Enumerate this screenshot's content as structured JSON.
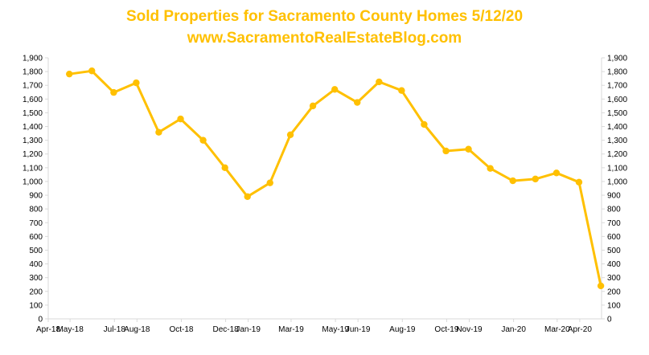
{
  "chart_data": {
    "type": "line",
    "title": "Sold Properties for Sacramento County Homes 5/12/20",
    "subtitle": "www.SacramentoRealEstateBlog.com",
    "xlabel": "",
    "ylabel": "",
    "x_ticks": [
      "Apr-18",
      "May-18",
      "Jul-18",
      "Aug-18",
      "Oct-18",
      "Dec-18",
      "Jan-19",
      "Mar-19",
      "May-19",
      "Jun-19",
      "Aug-19",
      "Oct-19",
      "Nov-19",
      "Jan-20",
      "Mar-20",
      "Apr-20"
    ],
    "y_ticks": [
      "0",
      "100",
      "200",
      "300",
      "400",
      "500",
      "600",
      "700",
      "800",
      "900",
      "1,000",
      "1,100",
      "1,200",
      "1,300",
      "1,400",
      "1,500",
      "1,600",
      "1,700",
      "1,800",
      "1,900"
    ],
    "ylim": [
      0,
      1900
    ],
    "xlim": [
      "2018-04-01",
      "2020-05-01"
    ],
    "grid": false,
    "legend": "none",
    "secondary_y_axis": true,
    "series": [
      {
        "color": "#FFC000",
        "x": [
          "2018-04-30",
          "2018-05-31",
          "2018-06-30",
          "2018-07-31",
          "2018-08-31",
          "2018-09-30",
          "2018-10-31",
          "2018-11-30",
          "2018-12-31",
          "2019-01-31",
          "2019-02-28",
          "2019-03-31",
          "2019-04-30",
          "2019-05-31",
          "2019-06-30",
          "2019-07-31",
          "2019-08-31",
          "2019-09-30",
          "2019-10-31",
          "2019-11-30",
          "2019-12-31",
          "2020-01-31",
          "2020-02-29",
          "2020-03-31",
          "2020-04-30"
        ],
        "values": [
          1782,
          1805,
          1648,
          1718,
          1358,
          1455,
          1300,
          1100,
          890,
          990,
          1340,
          1550,
          1670,
          1575,
          1725,
          1662,
          1415,
          1222,
          1235,
          1095,
          1005,
          1018,
          1062,
          995,
          240
        ]
      }
    ],
    "colors": {
      "line": "#FFC000",
      "title": "#FFC000",
      "axis": "#d9d9d9",
      "text": "#000000"
    }
  }
}
